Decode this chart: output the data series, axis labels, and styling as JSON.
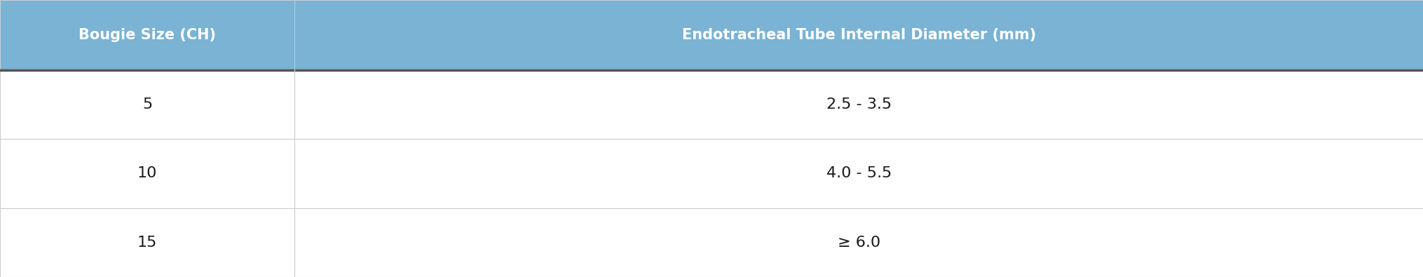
{
  "header": [
    "Bougie Size (CH)",
    "Endotracheal Tube Internal Diameter (mm)"
  ],
  "rows": [
    [
      "5",
      "2.5 - 3.5"
    ],
    [
      "10",
      "4.0 - 5.5"
    ],
    [
      "15",
      "≥ 6.0"
    ]
  ],
  "header_bg_color": "#7ab3d4",
  "header_text_color": "#FFFFFF",
  "header_bottom_line_color": "#555555",
  "row_line_color": "#CCCCCC",
  "body_text_color": "#1a1a1a",
  "bg_color": "#FFFFFF",
  "col_split": 0.207,
  "header_fontsize": 15,
  "body_fontsize": 16,
  "header_font_weight": "bold",
  "body_font_weight": "normal",
  "fig_width": 20.31,
  "fig_height": 3.95,
  "dpi": 100
}
